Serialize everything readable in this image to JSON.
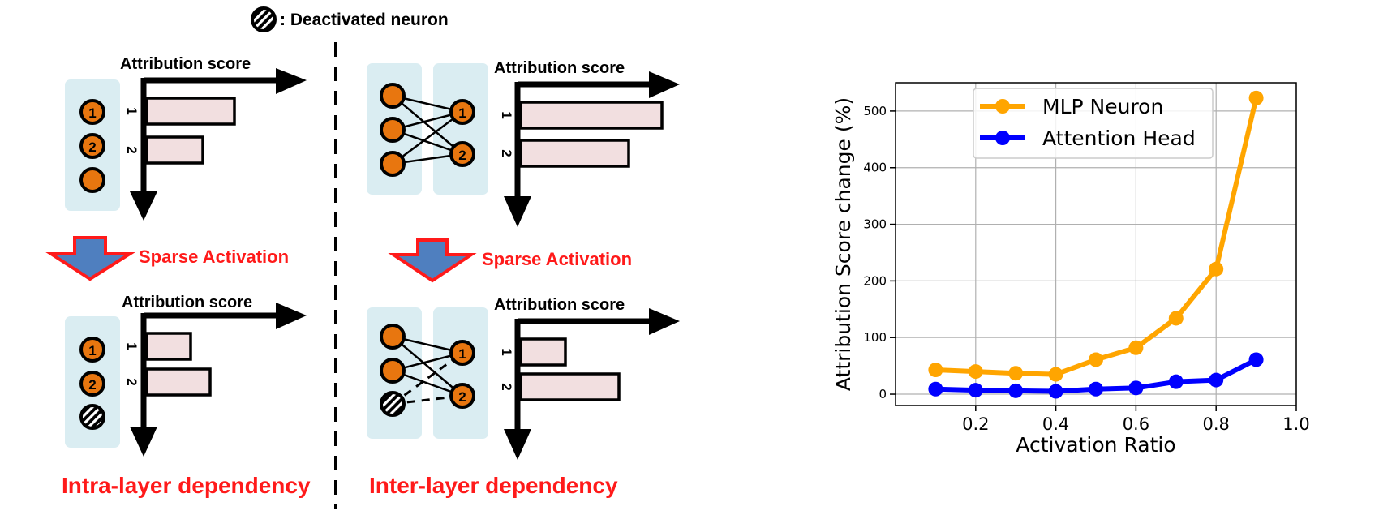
{
  "legend_top": {
    "text": ": Deactivated neuron"
  },
  "panels": {
    "intra": {
      "top_axis_label": "Attribution score",
      "bottom_axis_label": "Attribution score",
      "caption": "Intra-layer dependency",
      "arrow_label": "Sparse Activation",
      "neurons_top": [
        "1",
        "2",
        ""
      ],
      "neurons_bottom": [
        "1",
        "2",
        ""
      ],
      "bars_top": [
        {
          "label": "1",
          "value": 1.0
        },
        {
          "label": "2",
          "value": 0.65
        }
      ],
      "bars_bottom": [
        {
          "label": "1",
          "value": 0.5
        },
        {
          "label": "2",
          "value": 0.73
        }
      ]
    },
    "inter": {
      "top_axis_label": "Attribution score",
      "bottom_axis_label": "Attribution score",
      "caption": "Inter-layer dependency",
      "arrow_label": "Sparse Activation",
      "neurons_right_top": [
        "1",
        "2"
      ],
      "neurons_right_bottom": [
        "1",
        "2"
      ],
      "bars_top": [
        {
          "label": "1",
          "value": 1.0
        },
        {
          "label": "2",
          "value": 0.76
        }
      ],
      "bars_bottom": [
        {
          "label": "1",
          "value": 0.32
        },
        {
          "label": "2",
          "value": 0.7
        }
      ]
    }
  },
  "chart_data": {
    "type": "line",
    "xlabel": "Activation Ratio",
    "ylabel": "Attribution Score change (%)",
    "xlim": [
      0.0,
      1.0
    ],
    "ylim": [
      -20,
      550
    ],
    "xticks": [
      0.2,
      0.4,
      0.6,
      0.8,
      1.0
    ],
    "xtick_labels": [
      "0.2",
      "0.4",
      "0.6",
      "0.8",
      "1.0"
    ],
    "yticks": [
      0,
      100,
      200,
      300,
      400,
      500
    ],
    "ytick_labels": [
      "0",
      "100",
      "200",
      "300",
      "400",
      "500"
    ],
    "grid": true,
    "legend_position": "top-center",
    "x": [
      0.1,
      0.2,
      0.3,
      0.4,
      0.5,
      0.6,
      0.7,
      0.8,
      0.9
    ],
    "series": [
      {
        "name": "MLP Neuron",
        "color": "#ffa500",
        "values": [
          43,
          40,
          37,
          35,
          61,
          82,
          134,
          221,
          523
        ]
      },
      {
        "name": "Attention Head",
        "color": "#0000ff",
        "values": [
          9,
          7,
          6,
          5,
          9,
          11,
          22,
          25,
          61
        ]
      }
    ]
  },
  "colors": {
    "neuron_fill": "#e8760f",
    "panel_bg": "#daedf2",
    "bar_fill": "#f2dfe0",
    "highlight_red": "#ff1a1a",
    "arrow_blue": "#4f7fbf"
  }
}
